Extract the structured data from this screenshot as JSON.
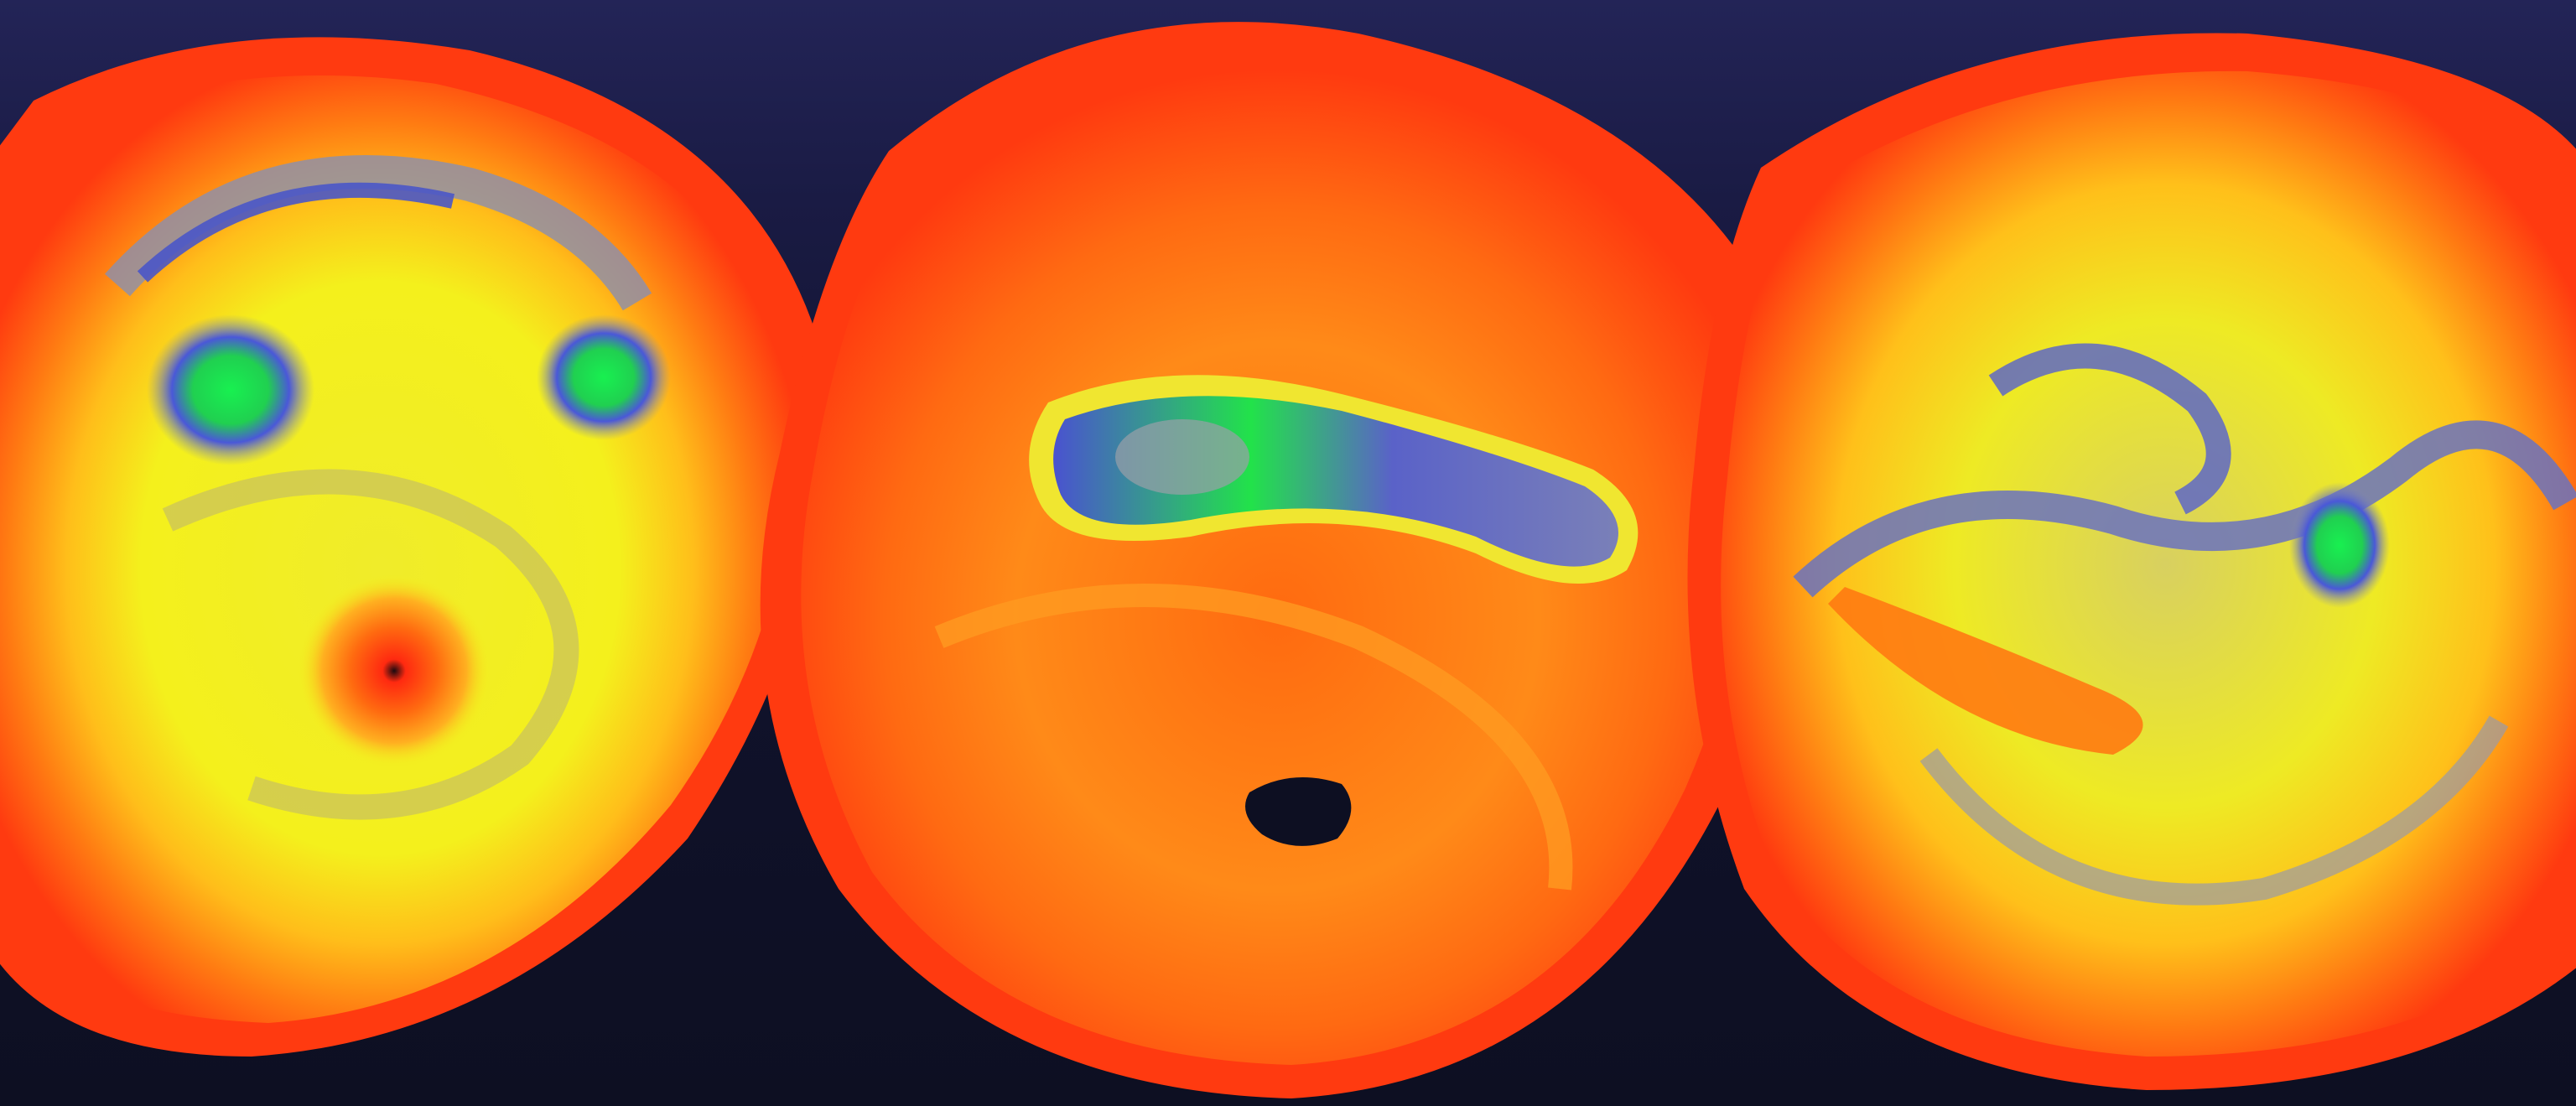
{
  "scene": {
    "colors": {
      "background_top": "#232457",
      "background_bottom": "#0d0f22",
      "outer_rim": "#ff3a10",
      "orange": "#ff6a10",
      "amber": "#ffa020",
      "yellow": "#f2ef1c",
      "olive": "#c8c060",
      "gray_blue": "#8a8fa0",
      "blue": "#5560d0",
      "green": "#18f050",
      "hole": "#0d0f22"
    },
    "discs": [
      {
        "name": "left-vortex-disc",
        "features": [
          "two-green-eddies",
          "central-red-vortex"
        ]
      },
      {
        "name": "center-vortex-disc",
        "features": [
          "elongated-blue-green-band",
          "dark-central-hole"
        ]
      },
      {
        "name": "right-vortex-disc",
        "features": [
          "blue-gray-swirl",
          "small-green-eddy"
        ]
      }
    ]
  }
}
